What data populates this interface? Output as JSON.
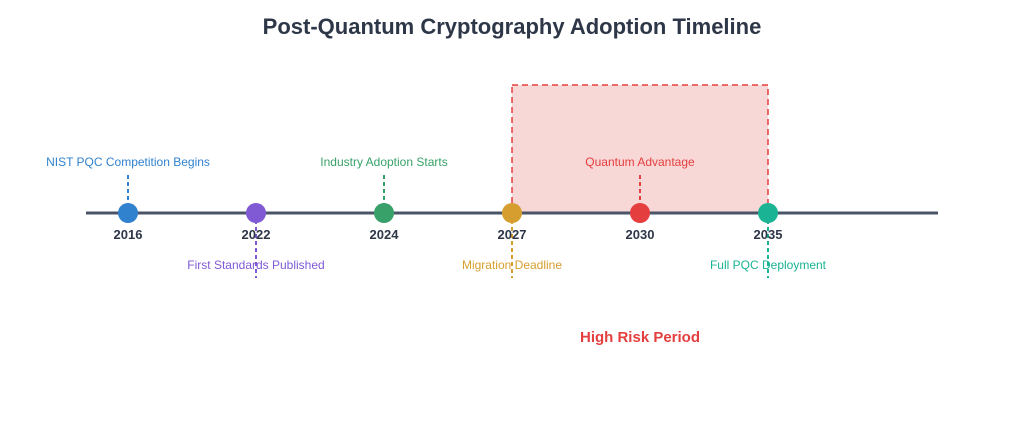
{
  "title": "Post-Quantum Cryptography Adoption Timeline",
  "axis_color": "#4a5568",
  "events": [
    {
      "year": "2016",
      "label": "NIST PQC Competition Begins",
      "color": "#3182ce",
      "side": "above"
    },
    {
      "year": "2022",
      "label": "First Standards Published",
      "color": "#805ad5",
      "side": "below"
    },
    {
      "year": "2024",
      "label": "Industry Adoption Starts",
      "color": "#38a169",
      "side": "above"
    },
    {
      "year": "2027",
      "label": "Migration Deadline",
      "color": "#d69e2e",
      "side": "below"
    },
    {
      "year": "2030",
      "label": "Quantum Advantage",
      "color": "#e53e3e",
      "side": "above"
    },
    {
      "year": "2035",
      "label": "Full PQC Deployment",
      "color": "#1ab394",
      "side": "below"
    }
  ],
  "risk_period": {
    "label": "High Risk Period",
    "from": "2027",
    "to": "2035",
    "color": "#e53e3e",
    "fill": "#f8d7d7"
  }
}
